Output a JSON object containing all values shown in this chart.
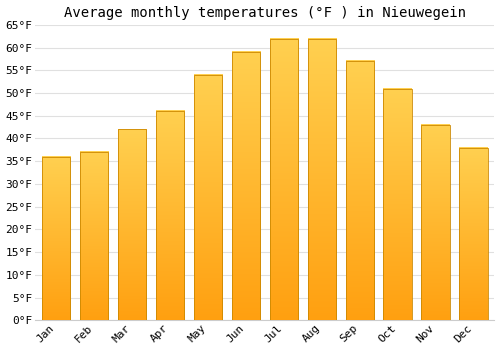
{
  "months": [
    "Jan",
    "Feb",
    "Mar",
    "Apr",
    "May",
    "Jun",
    "Jul",
    "Aug",
    "Sep",
    "Oct",
    "Nov",
    "Dec"
  ],
  "values": [
    36,
    37,
    42,
    46,
    54,
    59,
    62,
    62,
    57,
    51,
    43,
    38
  ],
  "bar_color_top": "#FFD050",
  "bar_color_bottom": "#FFA010",
  "bar_edge_color": "#CC8800",
  "title": "Average monthly temperatures (°F ) in Nieuwegein",
  "ylim": [
    0,
    65
  ],
  "yticks": [
    0,
    5,
    10,
    15,
    20,
    25,
    30,
    35,
    40,
    45,
    50,
    55,
    60,
    65
  ],
  "ytick_labels": [
    "0°F",
    "5°F",
    "10°F",
    "15°F",
    "20°F",
    "25°F",
    "30°F",
    "35°F",
    "40°F",
    "45°F",
    "50°F",
    "55°F",
    "60°F",
    "65°F"
  ],
  "background_color": "#FFFFFF",
  "grid_color": "#E0E0E0",
  "title_fontsize": 10,
  "tick_fontsize": 8,
  "font_family": "monospace"
}
